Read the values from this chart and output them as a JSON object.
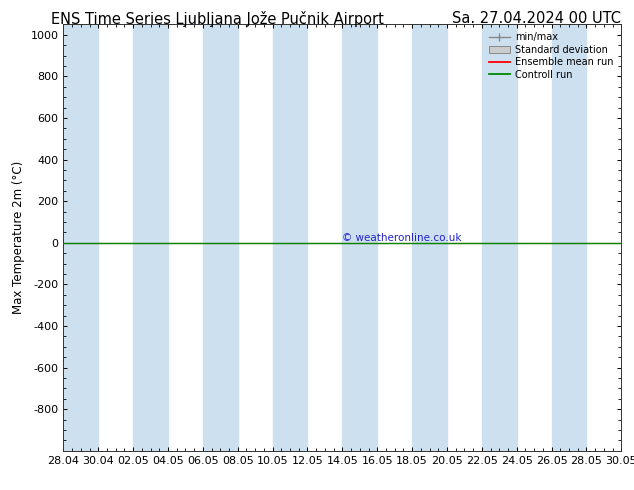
{
  "title_left": "ENS Time Series Ljubljana Jože Pučnik Airport",
  "title_right": "Sa. 27.04.2024 00 UTC",
  "ylabel": "Max Temperature 2m (°C)",
  "ylim": [
    -1000,
    1050
  ],
  "yticks": [
    -800,
    -600,
    -400,
    -200,
    0,
    200,
    400,
    600,
    800,
    1000
  ],
  "xlim_start": 0,
  "xlim_end": 32,
  "xtick_labels": [
    "28.04",
    "30.04",
    "02.05",
    "04.05",
    "06.05",
    "08.05",
    "10.05",
    "12.05",
    "14.05",
    "16.05",
    "18.05",
    "20.05",
    "22.05",
    "24.05",
    "26.05",
    "28.05",
    "30.05"
  ],
  "xtick_positions": [
    0,
    2,
    4,
    6,
    8,
    10,
    12,
    14,
    16,
    18,
    20,
    22,
    24,
    26,
    28,
    30,
    32
  ],
  "band_color": "#cce0f0",
  "band_pairs": [
    [
      0,
      2
    ],
    [
      4,
      6
    ],
    [
      8,
      10
    ],
    [
      12,
      14
    ],
    [
      16,
      18
    ],
    [
      20,
      22
    ],
    [
      24,
      26
    ],
    [
      28,
      30
    ]
  ],
  "green_line_y": 0,
  "red_line_y": 0,
  "watermark": "© weatheronline.co.uk",
  "watermark_color": "#2222cc",
  "background_color": "#ffffff",
  "plot_bg_color": "#ffffff",
  "legend_labels": [
    "min/max",
    "Standard deviation",
    "Ensemble mean run",
    "Controll run"
  ],
  "legend_colors": [
    "#aaaaaa",
    "#cccccc",
    "#ff0000",
    "#008800"
  ],
  "title_fontsize": 10.5,
  "tick_fontsize": 8,
  "ylabel_fontsize": 8.5
}
